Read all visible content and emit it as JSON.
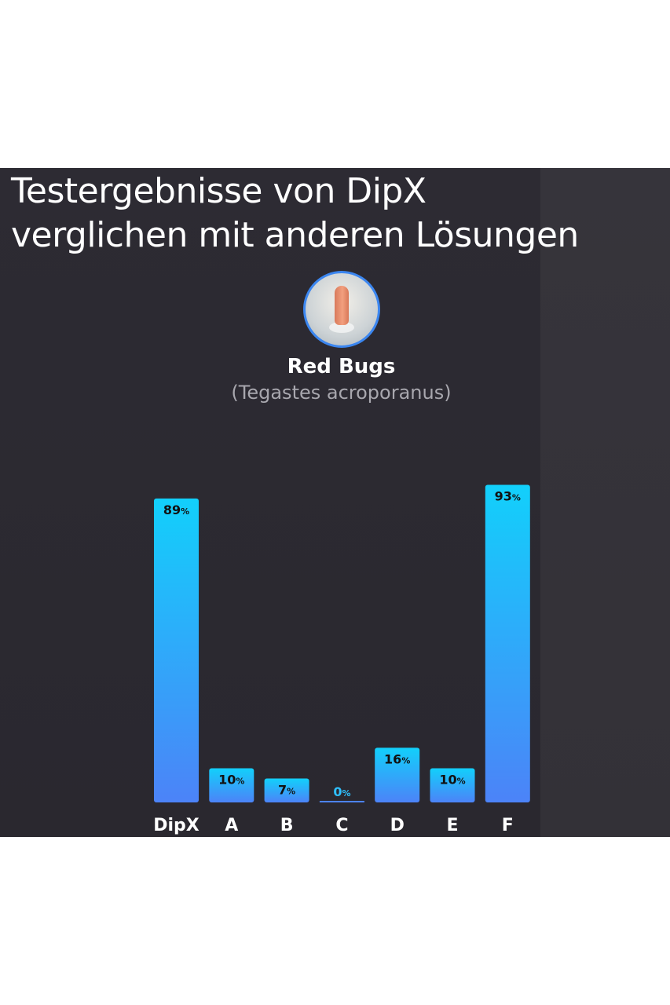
{
  "heading": {
    "line1": "Testergebnisse von DipX",
    "line2": "verglichen mit anderen Lösungen"
  },
  "subject": {
    "name": "Red Bugs",
    "species": "(Tegastes acroporanus)",
    "image_icon": "red-bug-photo"
  },
  "chart_data": {
    "type": "bar",
    "categories": [
      "DipX",
      "A",
      "B",
      "C",
      "D",
      "E",
      "F"
    ],
    "values": [
      89,
      10,
      7,
      0,
      16,
      10,
      93
    ],
    "value_labels": [
      "89",
      "10",
      "7",
      "0",
      "16",
      "10",
      "93"
    ],
    "unit": "%",
    "ylim": [
      0,
      100
    ],
    "grid": false,
    "legend": "none",
    "colors": {
      "bar_top": "#12d0fb",
      "bar_bottom": "#4c83f8",
      "label_dark": "#111111",
      "label_zero": "#2fc0ff"
    }
  }
}
